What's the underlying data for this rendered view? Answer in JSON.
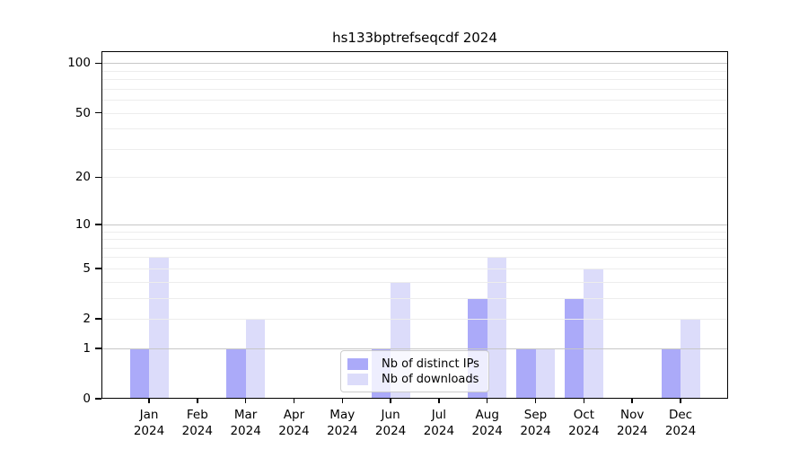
{
  "chart_data": {
    "type": "bar",
    "title": "hs133bptrefseqcdf 2024",
    "categories": [
      "Jan",
      "Feb",
      "Mar",
      "Apr",
      "May",
      "Jun",
      "Jul",
      "Aug",
      "Sep",
      "Oct",
      "Nov",
      "Dec"
    ],
    "category_year": "2024",
    "series": [
      {
        "name": "Nb of distinct IPs",
        "color": "#abaaf9",
        "values": [
          1,
          0,
          1,
          0,
          0,
          1,
          0,
          3,
          1,
          3,
          0,
          1
        ]
      },
      {
        "name": "Nb of downloads",
        "color": "#dcdcfa",
        "values": [
          6,
          0,
          2,
          0,
          0,
          4,
          0,
          6,
          1,
          5,
          0,
          2
        ]
      }
    ],
    "yscale": "log1p",
    "ylim": [
      0,
      118
    ],
    "yticks": [
      0,
      1,
      2,
      5,
      10,
      20,
      50,
      100
    ],
    "major_gridlines": [
      1,
      10,
      100
    ],
    "minor_gridlines": [
      2,
      3,
      4,
      5,
      6,
      7,
      8,
      9,
      20,
      30,
      40,
      50,
      60,
      70,
      80,
      90
    ],
    "grid_on": true,
    "legend_position": "lower center",
    "colors": {
      "major_grid": "#c7c7c7",
      "minor_grid": "#ededed",
      "axis": "#000000",
      "text": "#000000",
      "legend_border": "#cccccc",
      "legend_background": "#ffffff"
    }
  }
}
